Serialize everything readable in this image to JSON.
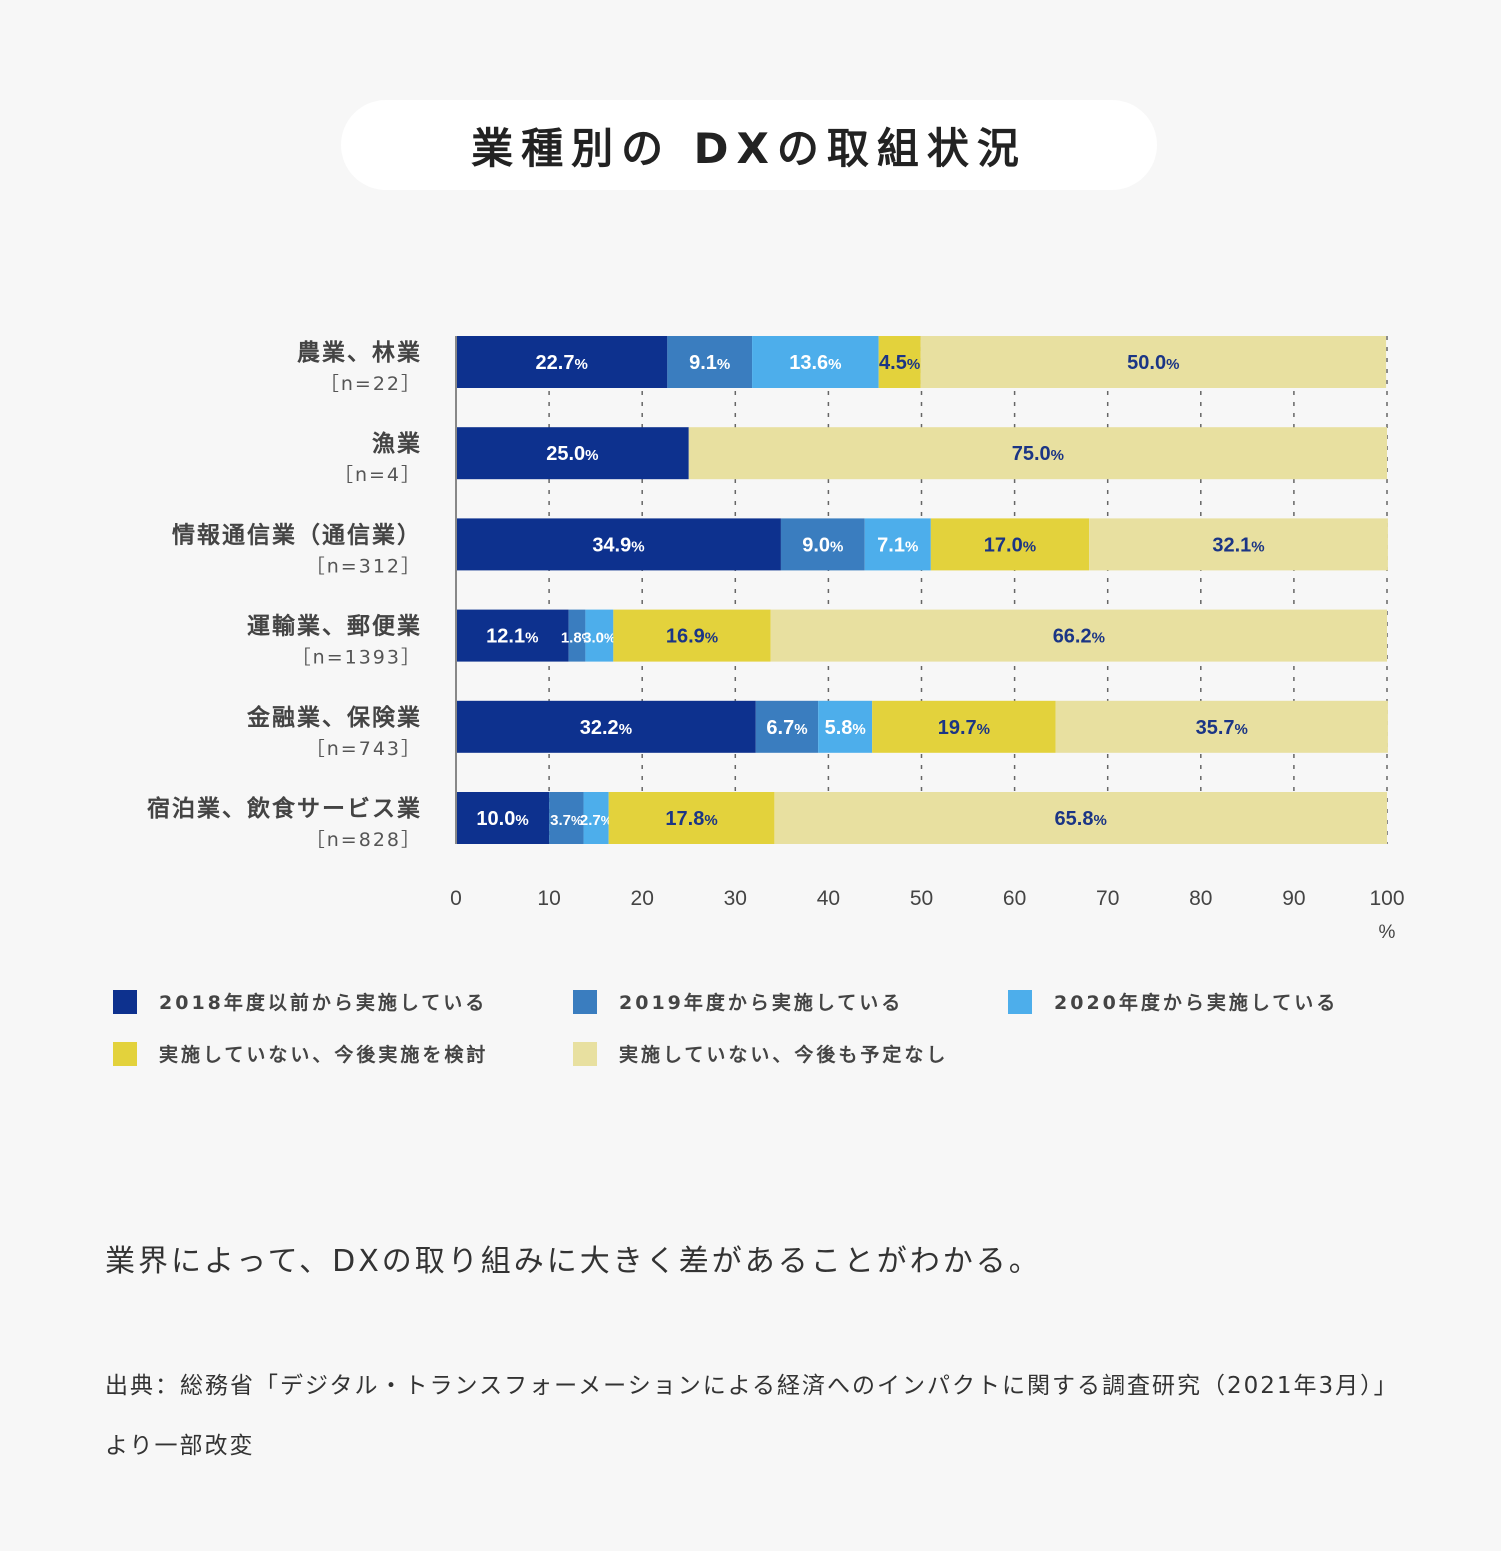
{
  "title": "業種別の DXの取組状況",
  "caption": "業界によって、DXの取り組みに大きく差があることがわかる。",
  "source": "出典：総務省「デジタル・トランスフォーメーションによる経済へのインパクトに関する調査研究（2021年3月）」より一部改変",
  "colors": {
    "background": "#f7f7f7",
    "series": [
      "#0d318e",
      "#3a7dbf",
      "#4daeeb",
      "#e3d23c",
      "#e8e0a0"
    ],
    "label_light": "#ffffff",
    "label_dark": "#1b3585"
  },
  "chart_data": {
    "type": "bar",
    "orientation": "horizontal",
    "stacked": true,
    "categories": [
      "農業、林業",
      "漁業",
      "情報通信業（通信業）",
      "運輸業、郵便業",
      "金融業、保険業",
      "宿泊業、飲食サービス業"
    ],
    "sample_sizes": [
      "［n=22］",
      "［n=4］",
      "［n=312］",
      "［n=1393］",
      "［n=743］",
      "［n=828］"
    ],
    "series": [
      {
        "name": "2018年度以前から実施している",
        "values": [
          22.7,
          25.0,
          34.9,
          12.1,
          32.2,
          10.0
        ]
      },
      {
        "name": "2019年度から実施している",
        "values": [
          9.1,
          0,
          9.0,
          1.8,
          6.7,
          3.7
        ]
      },
      {
        "name": "2020年度から実施している",
        "values": [
          13.6,
          0,
          7.1,
          3.0,
          5.8,
          2.7
        ]
      },
      {
        "name": "実施していない、今後実施を検討",
        "values": [
          4.5,
          0,
          17.0,
          16.9,
          19.7,
          17.8
        ]
      },
      {
        "name": "実施していない、今後も予定なし",
        "values": [
          50.0,
          75.0,
          32.1,
          66.2,
          35.7,
          65.8
        ]
      }
    ],
    "xlim": [
      0,
      100
    ],
    "xticks": [
      0,
      10,
      20,
      30,
      40,
      50,
      60,
      70,
      80,
      90,
      100
    ],
    "xunit": "%",
    "grid": "vertical dashed",
    "legend_position": "bottom"
  }
}
